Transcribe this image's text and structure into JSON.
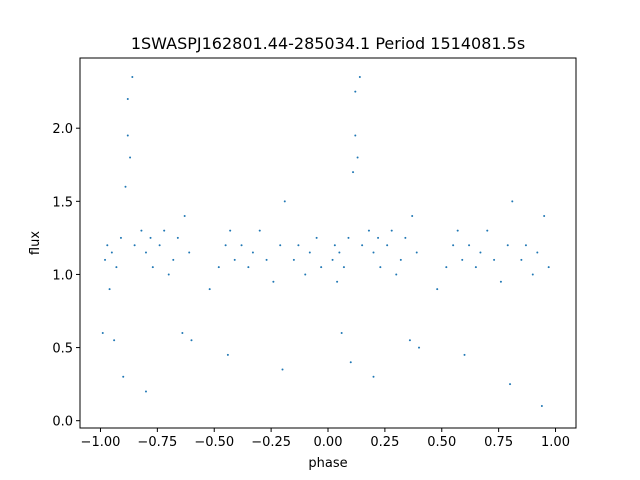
{
  "chart_data": {
    "type": "scatter",
    "title": "1SWASPJ162801.44-285034.1 Period 1514081.5s",
    "xlabel": "phase",
    "ylabel": "flux",
    "xlim": [
      -1.09,
      1.09
    ],
    "ylim": [
      -0.05,
      2.48
    ],
    "x_ticks": [
      -1.0,
      -0.75,
      -0.5,
      -0.25,
      0.0,
      0.25,
      0.5,
      0.75,
      1.0
    ],
    "x_tick_labels": [
      "−1.00",
      "−0.75",
      "−0.50",
      "−0.25",
      "0.00",
      "0.25",
      "0.50",
      "0.75",
      "1.00"
    ],
    "y_ticks": [
      0.0,
      0.5,
      1.0,
      1.5,
      2.0
    ],
    "y_tick_labels": [
      "0.0",
      "0.5",
      "1.0",
      "1.5",
      "2.0"
    ],
    "grid": false,
    "marker_color": "#1f77b4",
    "series": [
      {
        "x": [
          -0.98,
          -0.97,
          -0.96,
          -0.95,
          -0.93,
          -0.91,
          -0.89,
          -0.88,
          -0.87,
          -0.85,
          -0.82,
          -0.8,
          -0.78,
          -0.77,
          -0.74,
          -0.72,
          -0.7,
          -0.68,
          -0.66,
          -0.63,
          -0.61,
          -0.52,
          -0.48,
          -0.45,
          -0.43,
          -0.41,
          -0.38,
          -0.35,
          -0.33,
          -0.3,
          -0.27,
          -0.24,
          -0.21,
          -0.19,
          -0.15,
          -0.13,
          -0.1,
          -0.08,
          -0.05,
          -0.03,
          0.02,
          0.03,
          0.04,
          0.05,
          0.07,
          0.09,
          0.11,
          0.12,
          0.13,
          0.15,
          0.18,
          0.2,
          0.22,
          0.23,
          0.26,
          0.28,
          0.3,
          0.32,
          0.34,
          0.37,
          0.39,
          0.48,
          0.52,
          0.55,
          0.57,
          0.59,
          0.62,
          0.65,
          0.67,
          0.7,
          0.73,
          0.76,
          0.79,
          0.81,
          0.85,
          0.87,
          0.9,
          0.92,
          0.95,
          0.97,
          -0.99,
          -0.9,
          -0.86,
          -0.8,
          -0.6,
          -0.44,
          -0.2,
          0.1,
          0.14,
          0.2,
          0.4,
          0.6,
          0.8,
          0.94,
          -0.88,
          0.12,
          -0.64,
          0.36,
          0.06,
          -0.94
        ],
        "y": [
          1.1,
          1.2,
          0.9,
          1.15,
          1.05,
          1.25,
          1.6,
          2.2,
          1.8,
          1.2,
          1.3,
          1.15,
          1.25,
          1.05,
          1.2,
          1.3,
          1.0,
          1.1,
          1.25,
          1.4,
          1.15,
          0.9,
          1.05,
          1.2,
          1.3,
          1.1,
          1.2,
          1.05,
          1.15,
          1.3,
          1.1,
          0.95,
          1.2,
          1.5,
          1.1,
          1.2,
          1.0,
          1.15,
          1.25,
          1.05,
          1.1,
          1.2,
          0.95,
          1.15,
          1.05,
          1.25,
          1.7,
          2.25,
          1.8,
          1.2,
          1.3,
          1.15,
          1.25,
          1.05,
          1.2,
          1.3,
          1.0,
          1.1,
          1.25,
          1.4,
          1.15,
          0.9,
          1.05,
          1.2,
          1.3,
          1.1,
          1.2,
          1.05,
          1.15,
          1.3,
          1.1,
          0.95,
          1.2,
          1.5,
          1.1,
          1.2,
          1.0,
          1.15,
          1.4,
          1.05,
          0.6,
          0.3,
          2.35,
          0.2,
          0.55,
          0.45,
          0.35,
          0.4,
          2.35,
          0.3,
          0.5,
          0.45,
          0.25,
          0.1,
          1.95,
          1.95,
          0.6,
          0.55,
          0.6,
          0.55
        ]
      }
    ]
  }
}
